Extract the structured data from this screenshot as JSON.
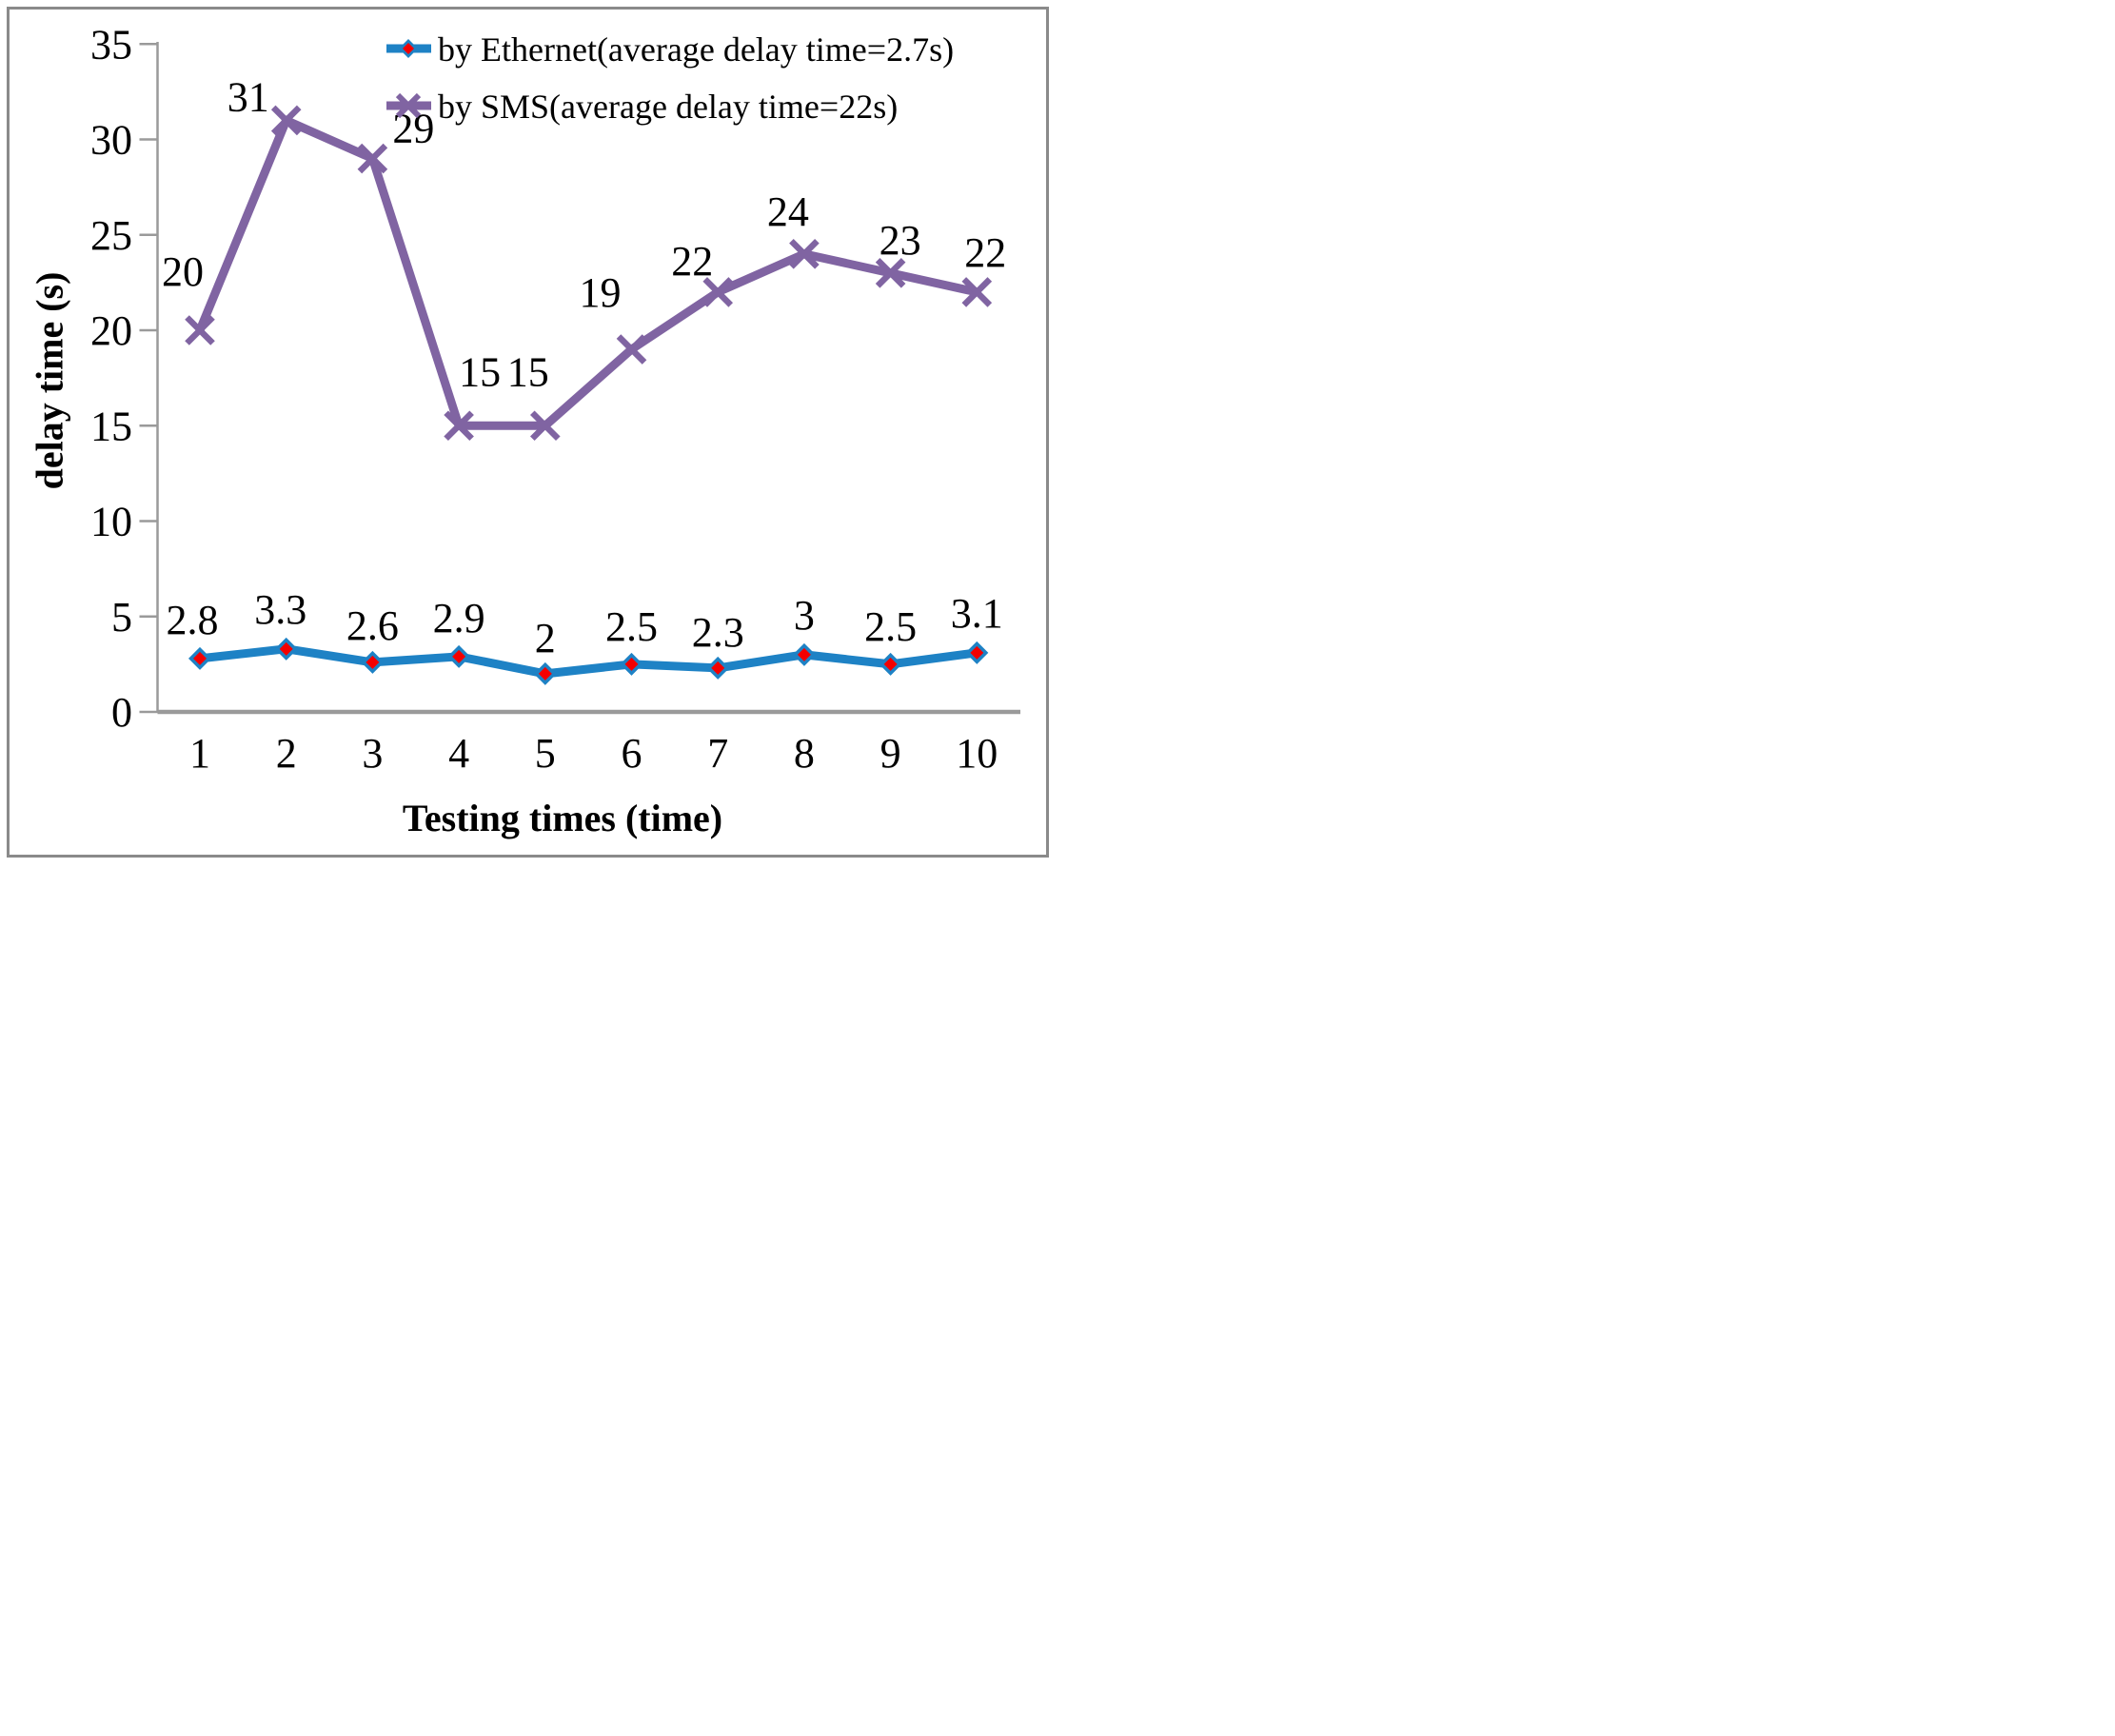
{
  "chart_data": {
    "type": "line",
    "title": "",
    "xlabel": "Testing times (time)",
    "ylabel": "delay time (s)",
    "x_categories": [
      1,
      2,
      3,
      4,
      5,
      6,
      7,
      8,
      9,
      10
    ],
    "y_ticks": [
      0,
      5,
      10,
      15,
      20,
      25,
      30,
      35
    ],
    "ylim": [
      0,
      35
    ],
    "grid": false,
    "legend_position": "top",
    "series": [
      {
        "key": "ethernet",
        "name": "by Ethernet(average delay time=2.7s)",
        "values": [
          2.8,
          3.3,
          2.6,
          2.9,
          2,
          2.5,
          2.3,
          3,
          2.5,
          3.1
        ],
        "data_labels": [
          "2.8",
          "3.3",
          "2.6",
          "2.9",
          "2",
          "2.5",
          "2.3",
          "3",
          "2.5",
          "3.1"
        ],
        "average_delay": "2.7s",
        "color": "#1E82C5",
        "marker": "diamond",
        "marker_fill": "#F40000"
      },
      {
        "key": "sms",
        "name": "by SMS(average delay time=22s)",
        "values": [
          20,
          31,
          29,
          15,
          15,
          19,
          22,
          24,
          23,
          22
        ],
        "data_labels": [
          "20",
          "31",
          "29",
          "15",
          "15",
          "19",
          "22",
          "24",
          "23",
          "22"
        ],
        "average_delay": "22s",
        "color": "#8064A2",
        "marker": "x"
      }
    ]
  },
  "colors": {
    "axis": "#9A9A9A",
    "frame_border": "#8A8A8A",
    "text": "#000000",
    "background": "#FFFFFF"
  }
}
